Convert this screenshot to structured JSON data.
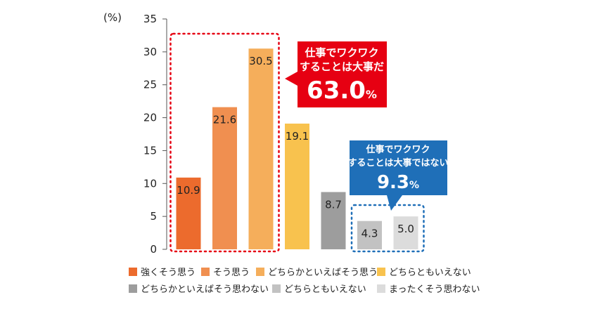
{
  "chart_data": {
    "type": "bar",
    "unit_label": "(%)",
    "ylim": [
      0,
      35
    ],
    "yticks": [
      0,
      5,
      10,
      15,
      20,
      25,
      30,
      35
    ],
    "grid": false,
    "categories": [
      "強くそう思う",
      "そう思う",
      "どちらかといえばそう思う",
      "どちらともいえない",
      "どちらかといえばそう思わない",
      "どちらともいえない",
      "まったくそう思わない"
    ],
    "values": [
      10.9,
      21.6,
      30.5,
      19.1,
      8.7,
      4.3,
      5.0
    ],
    "value_labels": [
      "10.9",
      "21.6",
      "30.5",
      "19.1",
      "8.7",
      "4.3",
      "5.0"
    ],
    "colors": [
      "#ec6b2d",
      "#f08f50",
      "#f5ae5b",
      "#f8c24e",
      "#9d9d9d",
      "#c2c2c2",
      "#dcdcdc"
    ],
    "legend_placement": "bottom",
    "callouts": [
      {
        "line1": "仕事でワクワク",
        "line2": "することは大事だ",
        "percent_value": "63.0",
        "percent_sign": "%",
        "color": "#e60012",
        "group_border_color": "#e60012"
      },
      {
        "line1": "仕事でワクワク",
        "line2": "することは大事ではない",
        "percent_value": "9.3",
        "percent_sign": "%",
        "color": "#1f6fb8",
        "group_border_color": "#1f6fb8"
      }
    ]
  }
}
